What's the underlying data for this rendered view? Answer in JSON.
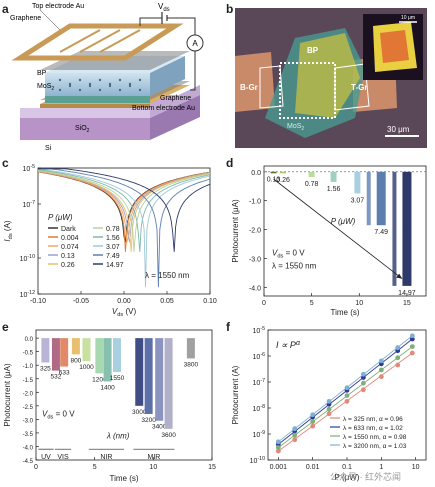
{
  "panels": {
    "a": "a",
    "b": "b",
    "c": "c",
    "d": "d",
    "e": "e",
    "f": "f"
  },
  "panel_a": {
    "top_electrode": "Top electrode Au",
    "graphene_top": "Graphene",
    "vds": "V",
    "vds_sub": "ds",
    "ammeter": "A",
    "bp": "BP",
    "mos2": "MoS",
    "mos2_sub": "2",
    "graphene_bottom": "Graphene",
    "bottom_electrode": "Bottom electrode Au",
    "sio2": "SiO",
    "sio2_sub": "2",
    "si": "Si"
  },
  "panel_b": {
    "bp": "BP",
    "bgr": "B-Gr",
    "tgr": "T-Gr",
    "mos2": "MoS",
    "mos2_sub": "2",
    "scale_main": "30 μm",
    "scale_inset": "10 μm"
  },
  "chart_data": [
    {
      "panel": "c",
      "type": "line",
      "xlabel": "V",
      "xlabel_sub": "ds",
      "xlabel_unit": " (V)",
      "ylabel": "I",
      "ylabel_sub": "ds",
      "ylabel_unit": " (A)",
      "xlim": [
        -0.1,
        0.1
      ],
      "ylog": true,
      "ylim": [
        1e-12,
        1e-05
      ],
      "xticks": [
        "-0.10",
        "-0.05",
        "0.00",
        "0.05",
        "0.10"
      ],
      "yticks": [
        "10",
        "10",
        "10",
        "10"
      ],
      "ytick_exp": [
        "-5",
        "-7",
        "-10",
        "-12"
      ],
      "legend_title": "P (μW)",
      "annotation": "λ = 1550 nm",
      "series": [
        {
          "name": "Dark",
          "color": "#333333",
          "dip": 0.001
        },
        {
          "name": "0.004",
          "color": "#e07a3a",
          "dip": 0.002
        },
        {
          "name": "0.074",
          "color": "#f0a860",
          "dip": 0.004
        },
        {
          "name": "0.13",
          "color": "#9aa3c8",
          "dip": 0.006
        },
        {
          "name": "0.26",
          "color": "#e8c070",
          "dip": 0.008
        },
        {
          "name": "0.78",
          "color": "#b7d39a",
          "dip": 0.012
        },
        {
          "name": "1.56",
          "color": "#7fb8a8",
          "dip": 0.018
        },
        {
          "name": "3.07",
          "color": "#9fc8d8",
          "dip": 0.025
        },
        {
          "name": "7.49",
          "color": "#5d7fb0",
          "dip": 0.04
        },
        {
          "name": "14.97",
          "color": "#2d3a6a",
          "dip": 0.058
        }
      ]
    },
    {
      "panel": "d",
      "type": "bar",
      "xlabel": "Time (s)",
      "ylabel": "Photocurrent (μA)",
      "xlim": [
        0,
        17
      ],
      "ylim": [
        -4.3,
        0.2
      ],
      "xticks": [
        "0",
        "5",
        "10",
        "15"
      ],
      "yticks": [
        "0.0",
        "-1.0",
        "-2.0",
        "-3.0",
        "-4.0"
      ],
      "annotation_lines": [
        "V",
        "= 0 V",
        "λ = 1550 nm"
      ],
      "arrow_label": "P (μW)",
      "pulses": [
        {
          "label": "0.13",
          "t": 1.0,
          "value": -0.02,
          "color": "#5f6f2a"
        },
        {
          "label": "0.26",
          "t": 2.0,
          "value": -0.04,
          "color": "#a8c070"
        },
        {
          "label": "0.78",
          "t": 5.0,
          "value": -0.18,
          "color": "#b8dd9a"
        },
        {
          "label": "1.56",
          "t": 7.3,
          "value": -0.35,
          "color": "#a0d0c0"
        },
        {
          "label": "3.07",
          "t": 9.8,
          "value": -0.75,
          "color": "#a8d0e0"
        },
        {
          "label": "7.49",
          "t": 12.3,
          "value": -1.85,
          "color": "#5d7fb0"
        },
        {
          "label": "14.97",
          "t": 15.0,
          "value": -3.95,
          "color": "#2d3a6a"
        }
      ]
    },
    {
      "panel": "e",
      "type": "bar",
      "xlabel": "Time (s)",
      "ylabel": "Photocurrent (μA)",
      "xlim": [
        0,
        15
      ],
      "ylim": [
        -4.5,
        0.3
      ],
      "xticks": [
        "0",
        "5",
        "10",
        "15"
      ],
      "yticks": [
        "0.0",
        "-0.5",
        "-1.0",
        "-1.5",
        "-2.0",
        "-2.5",
        "-3.0",
        "-3.5",
        "-4.0",
        "-4.5"
      ],
      "annotation_lines": [
        "V",
        "= 0 V"
      ],
      "lambda_label": "λ (nm)",
      "bands": [
        "UV",
        "VIS",
        "NIR",
        "MIR"
      ],
      "pulses": [
        {
          "label": "325",
          "t": 0.8,
          "value": -0.9,
          "color": "#b9b3d6"
        },
        {
          "label": "532",
          "t": 1.7,
          "value": -1.2,
          "color": "#b06a86"
        },
        {
          "label": "633",
          "t": 2.4,
          "value": -1.05,
          "color": "#e08a6a"
        },
        {
          "label": "800",
          "t": 3.4,
          "value": -0.6,
          "color": "#e8c070"
        },
        {
          "label": "1000",
          "t": 4.3,
          "value": -0.85,
          "color": "#c8e0a0"
        },
        {
          "label": "1200",
          "t": 5.4,
          "value": -1.3,
          "color": "#a8d8b0"
        },
        {
          "label": "1400",
          "t": 6.1,
          "value": -1.6,
          "color": "#88c0b0"
        },
        {
          "label": "1550",
          "t": 6.9,
          "value": -1.25,
          "color": "#a8d0e0"
        },
        {
          "label": "3000",
          "t": 8.8,
          "value": -2.5,
          "color": "#3f4d84"
        },
        {
          "label": "3200",
          "t": 9.6,
          "value": -2.8,
          "color": "#5d6fa8"
        },
        {
          "label": "3400",
          "t": 10.5,
          "value": -3.05,
          "color": "#8b93c0"
        },
        {
          "label": "3600",
          "t": 11.3,
          "value": -3.35,
          "color": "#b0b0c8"
        },
        {
          "label": "3800",
          "t": 13.2,
          "value": -0.75,
          "color": "#a0a0a0"
        }
      ]
    },
    {
      "panel": "f",
      "type": "scatter",
      "xlabel": "P (μW)",
      "ylabel": "Photocurrent (A)",
      "xlog": true,
      "ylog": true,
      "xlim": [
        0.0005,
        20
      ],
      "ylim": [
        1e-10,
        1e-05
      ],
      "xticks": [
        "0.001",
        "0.01",
        "0.1",
        "1",
        "10"
      ],
      "yticks": [
        "10",
        "10",
        "10",
        "10",
        "10",
        "10"
      ],
      "ytick_exp": [
        "-5",
        "-6",
        "-7",
        "-8",
        "-9",
        "-10"
      ],
      "annotation": "I ∝ P",
      "annotation_sup": "α",
      "series": [
        {
          "name": "λ = 325 nm, α = 0.96",
          "color": "#e08a7a",
          "points": [
            [
              0.001,
              2.2e-10
            ],
            [
              0.003,
              6e-10
            ],
            [
              0.01,
              2e-09
            ],
            [
              0.03,
              6e-09
            ],
            [
              0.1,
              1.8e-08
            ],
            [
              0.3,
              5e-08
            ],
            [
              1,
              1.6e-07
            ],
            [
              3,
              4.5e-07
            ],
            [
              8,
              1.3e-06
            ]
          ]
        },
        {
          "name": "λ = 633 nm, α = 1.02",
          "color": "#2d3a9a",
          "points": [
            [
              0.001,
              4e-10
            ],
            [
              0.003,
              1.3e-09
            ],
            [
              0.01,
              4.5e-09
            ],
            [
              0.03,
              1.4e-08
            ],
            [
              0.1,
              4.8e-08
            ],
            [
              0.3,
              1.5e-07
            ],
            [
              1,
              5e-07
            ],
            [
              3,
              1.6e-06
            ],
            [
              8,
              4.5e-06
            ]
          ]
        },
        {
          "name": "λ = 1550 nm, α = 0.98",
          "color": "#7fae7a",
          "points": [
            [
              0.001,
              3e-10
            ],
            [
              0.003,
              9e-10
            ],
            [
              0.01,
              3e-09
            ],
            [
              0.03,
              9e-09
            ],
            [
              0.1,
              3e-08
            ],
            [
              0.3,
              9e-08
            ],
            [
              1,
              2.9e-07
            ],
            [
              3,
              8.5e-07
            ],
            [
              8,
              2.3e-06
            ]
          ]
        },
        {
          "name": "λ = 3200 nm, α = 1.03",
          "color": "#7fb0d0",
          "points": [
            [
              0.001,
              5e-10
            ],
            [
              0.003,
              1.6e-09
            ],
            [
              0.01,
              5.5e-09
            ],
            [
              0.03,
              1.8e-08
            ],
            [
              0.1,
              6e-08
            ],
            [
              0.3,
              2e-07
            ],
            [
              1,
              6.5e-07
            ],
            [
              3,
              2.1e-06
            ],
            [
              8,
              6e-06
            ]
          ]
        }
      ]
    }
  ],
  "watermark": "公众号 · 红外芯闻"
}
